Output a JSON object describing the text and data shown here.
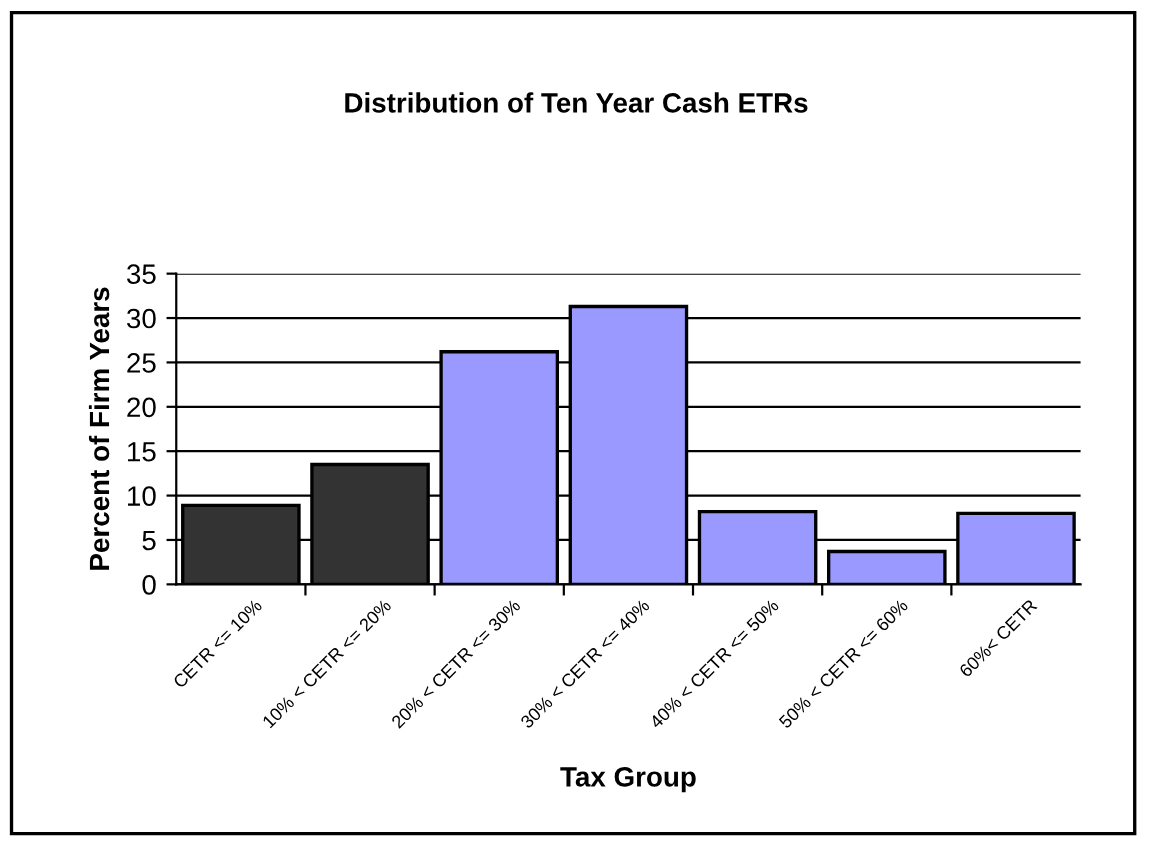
{
  "chart_data": {
    "type": "bar",
    "title": "Distribution of Ten Year Cash ETRs",
    "xlabel": "Tax Group",
    "ylabel": "Percent of Firm Years",
    "categories": [
      "CETR <= 10%",
      "10% < CETR <= 20%",
      "20% < CETR <= 30%",
      "30% < CETR <= 40%",
      "40% < CETR <= 50%",
      "50% < CETR <= 60%",
      "60%< CETR"
    ],
    "values": [
      8.9,
      13.5,
      26.2,
      31.3,
      8.2,
      3.7,
      8.0
    ],
    "colors": [
      "#333333",
      "#333333",
      "#9999ff",
      "#9999ff",
      "#9999ff",
      "#9999ff",
      "#9999ff"
    ],
    "ylim": [
      0,
      35
    ],
    "yticks": [
      0,
      5,
      10,
      15,
      20,
      25,
      30,
      35
    ],
    "grid": "y",
    "legend": false
  }
}
